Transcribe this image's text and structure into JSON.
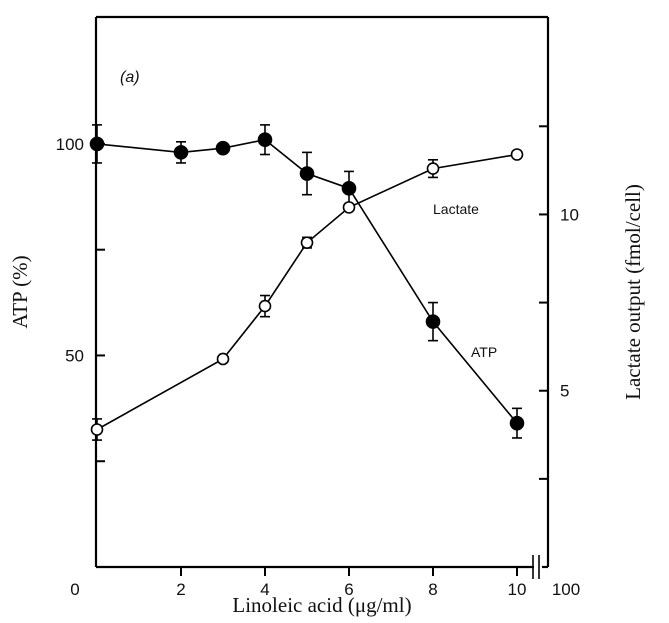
{
  "chart_data": {
    "type": "scatter",
    "panel_label": "(a)",
    "xlabel": "Linoleic acid (μg/ml)",
    "ylabel_left": "ATP (%)",
    "ylabel_right": "Lactate output (fmol/cell)",
    "xlim": [
      0,
      10
    ],
    "ylim_left": [
      0,
      130
    ],
    "ylim_right": [
      0,
      15.6
    ],
    "x_ticks": [
      0,
      2,
      4,
      6,
      8,
      10
    ],
    "x_tick_labels": [
      "0",
      "2",
      "4",
      "6",
      "8",
      "10"
    ],
    "x_break_label": "100",
    "y_left_ticks": [
      25,
      50,
      75,
      100
    ],
    "y_left_tick_labels": [
      "",
      "50",
      "",
      "100"
    ],
    "y_right_ticks": [
      2.5,
      5,
      7.5,
      10,
      12.5
    ],
    "y_right_tick_labels": [
      "",
      "5",
      "",
      "10",
      ""
    ],
    "grid": false,
    "series": [
      {
        "name": "ATP",
        "axis": "left",
        "marker": "filled-circle",
        "color": "#000000",
        "x": [
          0,
          2,
          3,
          4,
          5,
          6,
          8,
          10
        ],
        "y": [
          100,
          98,
          99,
          101,
          93,
          89.5,
          58,
          34
        ],
        "err": [
          4.5,
          2.5,
          0,
          3.5,
          5,
          4,
          4.5,
          3.5
        ]
      },
      {
        "name": "Lactate",
        "axis": "right",
        "marker": "open-circle",
        "color": "#000000",
        "x": [
          0,
          3,
          4,
          5,
          6,
          8,
          10
        ],
        "y": [
          3.9,
          5.9,
          7.4,
          9.2,
          10.2,
          11.3,
          11.7
        ],
        "err": [
          0.3,
          0,
          0.3,
          0.15,
          0,
          0.25,
          0
        ]
      }
    ]
  }
}
